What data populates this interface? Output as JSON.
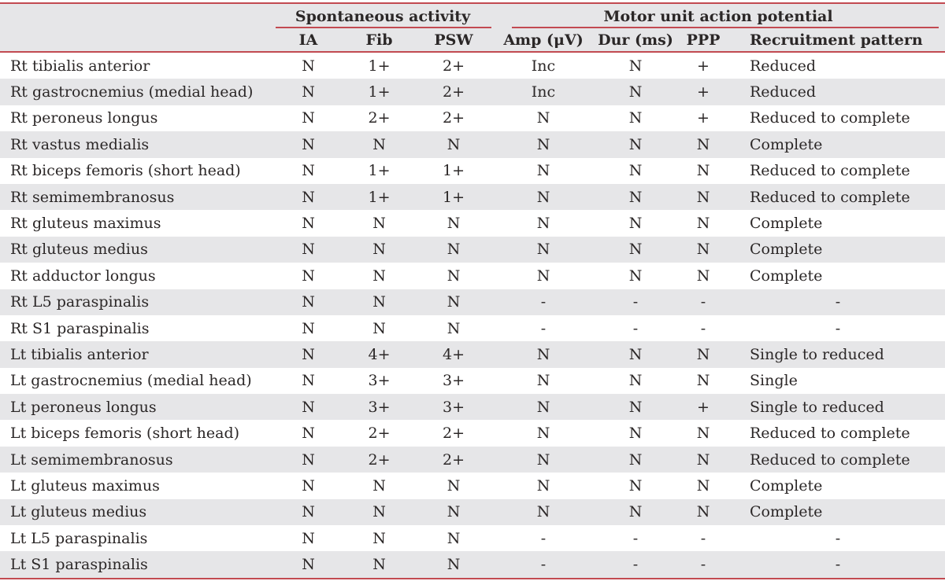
{
  "theme": {
    "accent-red": "#c24a51",
    "row-gray": "#e6e6e8",
    "text": "#2b2727",
    "bg": "#ffffff"
  },
  "table": {
    "group_headers": {
      "spontaneous": "Spontaneous activity",
      "motor": "Motor unit action potential"
    },
    "columns": {
      "muscle": "",
      "ia": "IA",
      "fib": "Fib",
      "psw": "PSW",
      "amp": "Amp (μV)",
      "dur": "Dur (ms)",
      "ppp": "PPP",
      "recruitment": "Recruitment pattern"
    },
    "rows": [
      {
        "muscle": "Rt tibialis anterior",
        "values": [
          "N",
          "1+",
          "2+",
          "Inc",
          "N",
          "+",
          "Reduced"
        ]
      },
      {
        "muscle": "Rt gastrocnemius (medial head)",
        "values": [
          "N",
          "1+",
          "2+",
          "Inc",
          "N",
          "+",
          "Reduced"
        ]
      },
      {
        "muscle": "Rt peroneus longus",
        "values": [
          "N",
          "2+",
          "2+",
          "N",
          "N",
          "+",
          "Reduced to complete"
        ]
      },
      {
        "muscle": "Rt vastus medialis",
        "values": [
          "N",
          "N",
          "N",
          "N",
          "N",
          "N",
          "Complete"
        ]
      },
      {
        "muscle": "Rt biceps femoris (short head)",
        "values": [
          "N",
          "1+",
          "1+",
          "N",
          "N",
          "N",
          "Reduced to complete"
        ]
      },
      {
        "muscle": "Rt semimembranosus",
        "values": [
          "N",
          "1+",
          "1+",
          "N",
          "N",
          "N",
          "Reduced to complete"
        ]
      },
      {
        "muscle": "Rt gluteus maximus",
        "values": [
          "N",
          "N",
          "N",
          "N",
          "N",
          "N",
          "Complete"
        ]
      },
      {
        "muscle": "Rt gluteus medius",
        "values": [
          "N",
          "N",
          "N",
          "N",
          "N",
          "N",
          "Complete"
        ]
      },
      {
        "muscle": "Rt adductor longus",
        "values": [
          "N",
          "N",
          "N",
          "N",
          "N",
          "N",
          "Complete"
        ]
      },
      {
        "muscle": "Rt L5 paraspinalis",
        "values": [
          "N",
          "N",
          "N",
          "-",
          "-",
          "-",
          "-"
        ]
      },
      {
        "muscle": "Rt S1 paraspinalis",
        "values": [
          "N",
          "N",
          "N",
          "-",
          "-",
          "-",
          "-"
        ]
      },
      {
        "muscle": "Lt tibialis anterior",
        "values": [
          "N",
          "4+",
          "4+",
          "N",
          "N",
          "N",
          "Single to reduced"
        ]
      },
      {
        "muscle": "Lt gastrocnemius (medial head)",
        "values": [
          "N",
          "3+",
          "3+",
          "N",
          "N",
          "N",
          "Single"
        ]
      },
      {
        "muscle": "Lt peroneus longus",
        "values": [
          "N",
          "3+",
          "3+",
          "N",
          "N",
          "+",
          "Single to reduced"
        ]
      },
      {
        "muscle": "Lt biceps femoris (short head)",
        "values": [
          "N",
          "2+",
          "2+",
          "N",
          "N",
          "N",
          "Reduced to complete"
        ]
      },
      {
        "muscle": "Lt semimembranosus",
        "values": [
          "N",
          "2+",
          "2+",
          "N",
          "N",
          "N",
          "Reduced to complete"
        ]
      },
      {
        "muscle": "Lt gluteus maximus",
        "values": [
          "N",
          "N",
          "N",
          "N",
          "N",
          "N",
          "Complete"
        ]
      },
      {
        "muscle": "Lt gluteus medius",
        "values": [
          "N",
          "N",
          "N",
          "N",
          "N",
          "N",
          "Complete"
        ]
      },
      {
        "muscle": "Lt L5 paraspinalis",
        "values": [
          "N",
          "N",
          "N",
          "-",
          "-",
          "-",
          "-"
        ]
      },
      {
        "muscle": "Lt S1 paraspinalis",
        "values": [
          "N",
          "N",
          "N",
          "-",
          "-",
          "-",
          "-"
        ]
      }
    ]
  }
}
